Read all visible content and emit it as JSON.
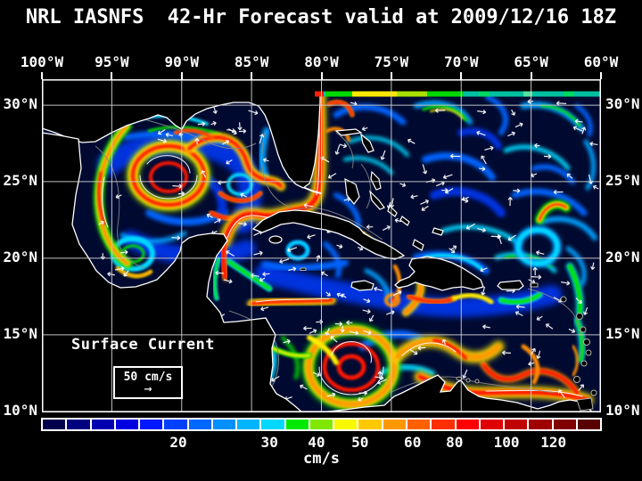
{
  "title": "NRL IASNFS  42-Hr Forecast valid at 2009/12/16 18Z",
  "map": {
    "lon_labels": [
      "100°W",
      "95°W",
      "90°W",
      "85°W",
      "80°W",
      "75°W",
      "70°W",
      "65°W",
      "60°W"
    ],
    "lon_positions_pct": [
      0,
      12.5,
      25,
      37.5,
      50,
      62.5,
      75,
      87.5,
      100
    ],
    "lat_labels": [
      "30°N",
      "25°N",
      "20°N",
      "15°N",
      "10°N"
    ],
    "lat_positions_pct": [
      7.8,
      30.7,
      53.7,
      76.7,
      99.7
    ],
    "overlay": {
      "label": "Surface Current",
      "scale_value": "50 cm/s",
      "arrow_icon": "→"
    },
    "colors": {
      "ocean": "#000a30",
      "land": "#000000",
      "coastline": "#ffffff",
      "grid": "#cccccc",
      "frame": "#ffffff",
      "arrows": "#ffffff"
    }
  },
  "colorbar": {
    "unit": "cm/s",
    "tick_labels": [
      "20",
      "30",
      "40",
      "50",
      "60",
      "80",
      "100",
      "120"
    ],
    "tick_positions_pct": [
      24.4,
      40.7,
      49.1,
      56.9,
      66.3,
      73.8,
      83.1,
      91.5
    ],
    "segment_colors": [
      "#00004c",
      "#000080",
      "#0000b0",
      "#0000e0",
      "#0018ff",
      "#0040ff",
      "#0068ff",
      "#0090ff",
      "#00b4ff",
      "#00d8ff",
      "#00e800",
      "#80e800",
      "#f8f800",
      "#ffc800",
      "#ff9800",
      "#ff6000",
      "#ff3000",
      "#ff0000",
      "#e00000",
      "#c00000",
      "#a00000",
      "#800000",
      "#580000"
    ],
    "border_color": "#ffffff"
  }
}
